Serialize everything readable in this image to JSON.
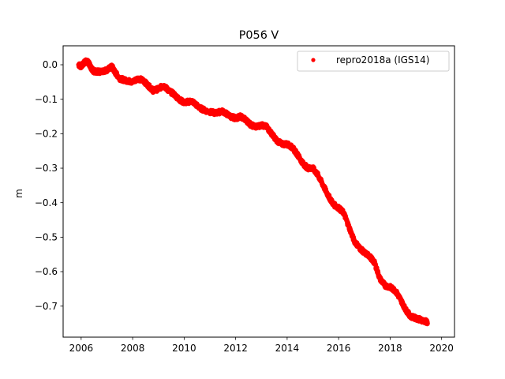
{
  "chart_data": {
    "type": "scatter",
    "title": "P056 V",
    "xlabel": "",
    "ylabel": "m",
    "xlim": [
      2005.3,
      2020.5
    ],
    "ylim": [
      -0.79,
      0.055
    ],
    "xticks": [
      2006,
      2008,
      2010,
      2012,
      2014,
      2016,
      2018,
      2020
    ],
    "xtick_labels": [
      "2006",
      "2008",
      "2010",
      "2012",
      "2014",
      "2016",
      "2018",
      "2020"
    ],
    "yticks": [
      0.0,
      -0.1,
      -0.2,
      -0.3,
      -0.4,
      -0.5,
      -0.6,
      -0.7
    ],
    "ytick_labels": [
      "0.0",
      "−0.1",
      "−0.2",
      "−0.3",
      "−0.4",
      "−0.5",
      "−0.6",
      "−0.7"
    ],
    "grid": false,
    "legend_position": "top-right",
    "series": [
      {
        "name": "repro2018a (IGS14)",
        "color": "#ff0000",
        "marker": "dot",
        "x": [
          2005.9,
          2006.0,
          2006.1,
          2006.2,
          2006.3,
          2006.4,
          2006.5,
          2006.6,
          2006.8,
          2007.0,
          2007.2,
          2007.3,
          2007.5,
          2007.7,
          2008.0,
          2008.2,
          2008.4,
          2008.6,
          2008.8,
          2009.0,
          2009.2,
          2009.4,
          2009.6,
          2009.8,
          2010.0,
          2010.3,
          2010.6,
          2010.9,
          2011.2,
          2011.5,
          2011.8,
          2012.0,
          2012.2,
          2012.4,
          2012.6,
          2012.8,
          2013.0,
          2013.2,
          2013.4,
          2013.6,
          2013.8,
          2014.0,
          2014.2,
          2014.4,
          2014.6,
          2014.8,
          2015.0,
          2015.2,
          2015.4,
          2015.6,
          2015.8,
          2016.0,
          2016.2,
          2016.4,
          2016.6,
          2016.8,
          2017.0,
          2017.2,
          2017.4,
          2017.6,
          2017.8,
          2018.0,
          2018.2,
          2018.4,
          2018.6,
          2018.8,
          2019.0,
          2019.2,
          2019.4,
          2019.45
        ],
        "y": [
          0.0,
          -0.005,
          0.005,
          0.01,
          0.005,
          -0.01,
          -0.02,
          -0.02,
          -0.02,
          -0.015,
          -0.005,
          -0.02,
          -0.04,
          -0.045,
          -0.05,
          -0.04,
          -0.045,
          -0.06,
          -0.075,
          -0.07,
          -0.06,
          -0.075,
          -0.085,
          -0.1,
          -0.11,
          -0.105,
          -0.125,
          -0.135,
          -0.14,
          -0.135,
          -0.15,
          -0.155,
          -0.15,
          -0.16,
          -0.175,
          -0.18,
          -0.175,
          -0.18,
          -0.2,
          -0.22,
          -0.23,
          -0.23,
          -0.24,
          -0.26,
          -0.285,
          -0.3,
          -0.3,
          -0.32,
          -0.35,
          -0.38,
          -0.405,
          -0.415,
          -0.43,
          -0.47,
          -0.51,
          -0.53,
          -0.545,
          -0.555,
          -0.575,
          -0.62,
          -0.64,
          -0.645,
          -0.655,
          -0.68,
          -0.71,
          -0.73,
          -0.735,
          -0.74,
          -0.745,
          -0.75
        ]
      }
    ]
  }
}
